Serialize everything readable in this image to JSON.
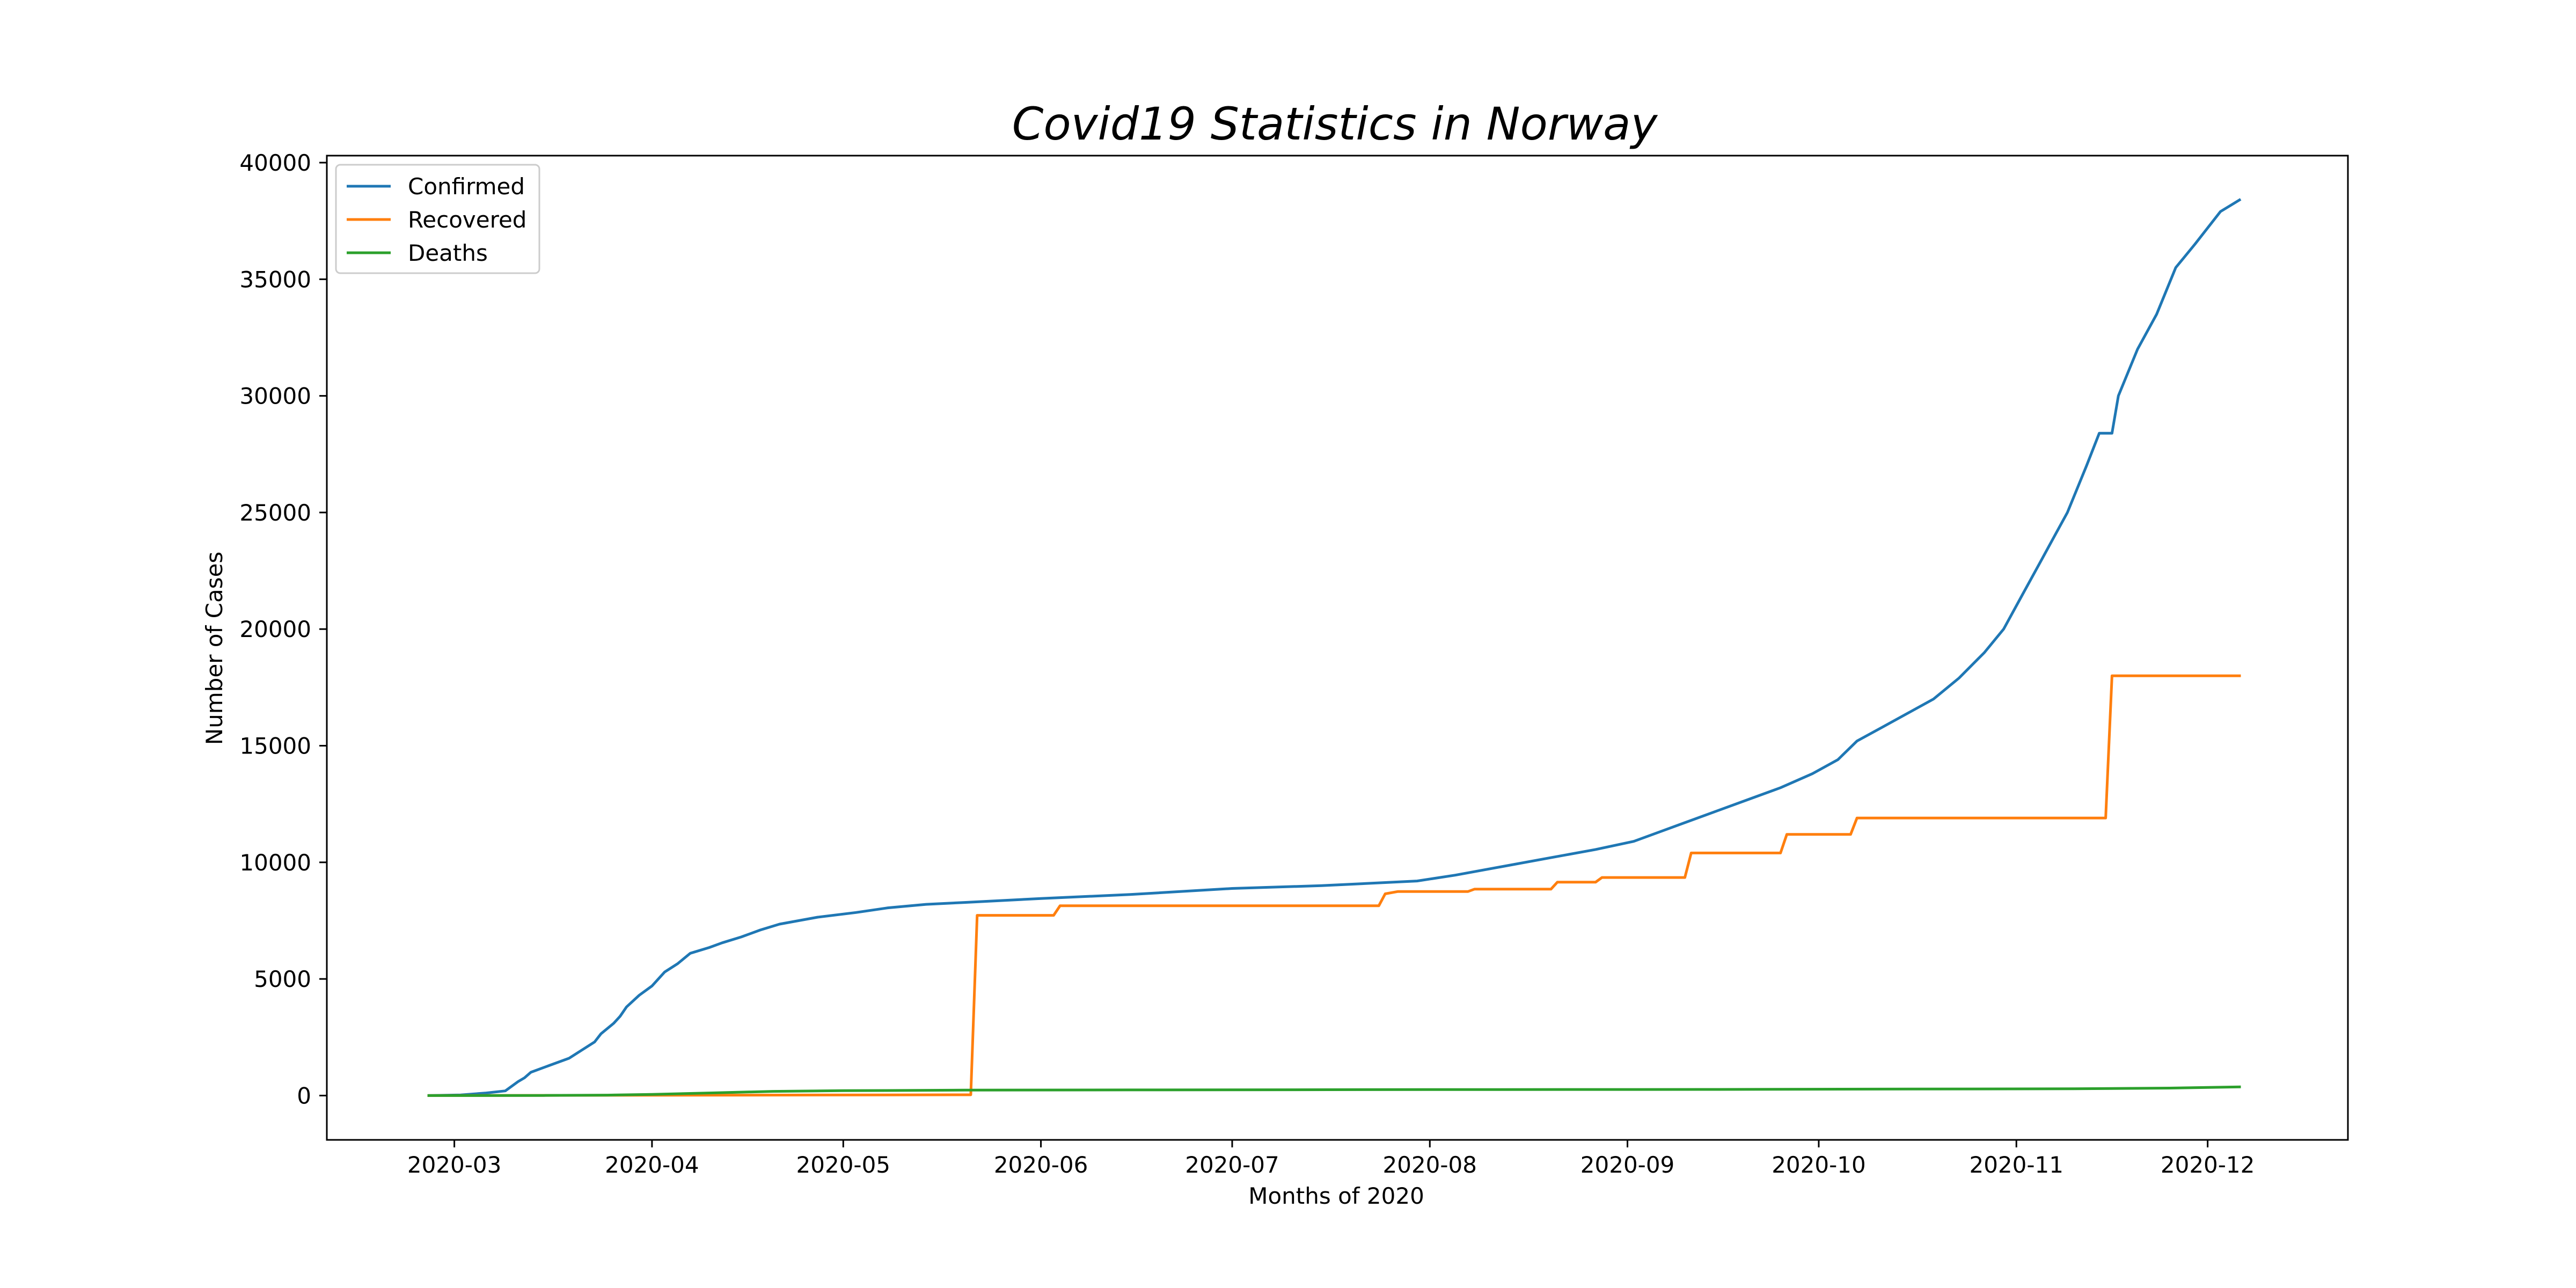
{
  "chart_data": {
    "type": "line",
    "title": "Covid19 Statistics in Norway",
    "xlabel": "Months of 2020",
    "ylabel": "Number of Cases",
    "xlim": [
      "2020-02-10",
      "2020-12-23"
    ],
    "ylim": [
      -1900,
      40300
    ],
    "x_ticks": [
      "2020-03-01",
      "2020-04-01",
      "2020-05-01",
      "2020-06-01",
      "2020-07-01",
      "2020-08-01",
      "2020-09-01",
      "2020-10-01",
      "2020-11-01",
      "2020-12-01"
    ],
    "x_tick_labels": [
      "2020-03",
      "2020-04",
      "2020-05",
      "2020-06",
      "2020-07",
      "2020-08",
      "2020-09",
      "2020-10",
      "2020-11",
      "2020-12"
    ],
    "y_ticks": [
      0,
      5000,
      10000,
      15000,
      20000,
      25000,
      30000,
      35000,
      40000
    ],
    "y_tick_labels": [
      "0",
      "5000",
      "10000",
      "15000",
      "20000",
      "25000",
      "30000",
      "35000",
      "40000"
    ],
    "grid": false,
    "legend": "top-left",
    "series": [
      {
        "name": "Confirmed",
        "color": "#1f77b4",
        "step": false,
        "points": [
          [
            "2020-02-26",
            1
          ],
          [
            "2020-03-02",
            25
          ],
          [
            "2020-03-06",
            110
          ],
          [
            "2020-03-09",
            200
          ],
          [
            "2020-03-11",
            600
          ],
          [
            "2020-03-12",
            760
          ],
          [
            "2020-03-13",
            1000
          ],
          [
            "2020-03-16",
            1300
          ],
          [
            "2020-03-19",
            1600
          ],
          [
            "2020-03-21",
            1950
          ],
          [
            "2020-03-23",
            2300
          ],
          [
            "2020-03-24",
            2650
          ],
          [
            "2020-03-26",
            3100
          ],
          [
            "2020-03-27",
            3400
          ],
          [
            "2020-03-28",
            3800
          ],
          [
            "2020-03-30",
            4300
          ],
          [
            "2020-04-01",
            4700
          ],
          [
            "2020-04-03",
            5300
          ],
          [
            "2020-04-05",
            5650
          ],
          [
            "2020-04-07",
            6100
          ],
          [
            "2020-04-10",
            6350
          ],
          [
            "2020-04-12",
            6550
          ],
          [
            "2020-04-15",
            6800
          ],
          [
            "2020-04-18",
            7100
          ],
          [
            "2020-04-21",
            7350
          ],
          [
            "2020-04-24",
            7500
          ],
          [
            "2020-04-27",
            7650
          ],
          [
            "2020-05-03",
            7850
          ],
          [
            "2020-05-08",
            8050
          ],
          [
            "2020-05-14",
            8200
          ],
          [
            "2020-05-20",
            8280
          ],
          [
            "2020-06-01",
            8450
          ],
          [
            "2020-06-15",
            8620
          ],
          [
            "2020-07-01",
            8880
          ],
          [
            "2020-07-15",
            9000
          ],
          [
            "2020-07-30",
            9200
          ],
          [
            "2020-08-05",
            9450
          ],
          [
            "2020-08-12",
            9800
          ],
          [
            "2020-08-20",
            10200
          ],
          [
            "2020-08-27",
            10550
          ],
          [
            "2020-09-02",
            10900
          ],
          [
            "2020-09-06",
            11300
          ],
          [
            "2020-09-10",
            11700
          ],
          [
            "2020-09-15",
            12200
          ],
          [
            "2020-09-20",
            12700
          ],
          [
            "2020-09-25",
            13200
          ],
          [
            "2020-09-30",
            13800
          ],
          [
            "2020-10-04",
            14400
          ],
          [
            "2020-10-07",
            15200
          ],
          [
            "2020-10-11",
            15800
          ],
          [
            "2020-10-15",
            16400
          ],
          [
            "2020-10-19",
            17000
          ],
          [
            "2020-10-23",
            17900
          ],
          [
            "2020-10-27",
            19000
          ],
          [
            "2020-10-30",
            20000
          ],
          [
            "2020-11-02",
            21500
          ],
          [
            "2020-11-05",
            23000
          ],
          [
            "2020-11-07",
            24000
          ],
          [
            "2020-11-09",
            25000
          ],
          [
            "2020-11-12",
            27000
          ],
          [
            "2020-11-14",
            28400
          ],
          [
            "2020-11-16",
            28400
          ],
          [
            "2020-11-17",
            30000
          ],
          [
            "2020-11-20",
            32000
          ],
          [
            "2020-11-23",
            33500
          ],
          [
            "2020-11-26",
            35500
          ],
          [
            "2020-11-29",
            36500
          ],
          [
            "2020-12-03",
            37900
          ],
          [
            "2020-12-06",
            38400
          ]
        ]
      },
      {
        "name": "Recovered",
        "color": "#ff7f0e",
        "step": true,
        "points": [
          [
            "2020-02-26",
            0
          ],
          [
            "2020-05-21",
            32
          ],
          [
            "2020-05-22",
            7727
          ],
          [
            "2020-06-03",
            7727
          ],
          [
            "2020-06-04",
            8138
          ],
          [
            "2020-07-24",
            8138
          ],
          [
            "2020-07-25",
            8650
          ],
          [
            "2020-07-27",
            8750
          ],
          [
            "2020-08-07",
            8750
          ],
          [
            "2020-08-08",
            8850
          ],
          [
            "2020-08-20",
            8850
          ],
          [
            "2020-08-21",
            9150
          ],
          [
            "2020-08-27",
            9150
          ],
          [
            "2020-08-28",
            9350
          ],
          [
            "2020-09-10",
            9350
          ],
          [
            "2020-09-11",
            10400
          ],
          [
            "2020-09-25",
            10400
          ],
          [
            "2020-09-26",
            11200
          ],
          [
            "2020-10-06",
            11200
          ],
          [
            "2020-10-07",
            11900
          ],
          [
            "2020-11-15",
            11900
          ],
          [
            "2020-11-16",
            18000
          ],
          [
            "2020-12-06",
            18000
          ]
        ]
      },
      {
        "name": "Deaths",
        "color": "#2ca02c",
        "step": false,
        "points": [
          [
            "2020-02-26",
            0
          ],
          [
            "2020-03-15",
            5
          ],
          [
            "2020-03-25",
            20
          ],
          [
            "2020-04-01",
            50
          ],
          [
            "2020-04-10",
            110
          ],
          [
            "2020-04-20",
            180
          ],
          [
            "2020-05-01",
            210
          ],
          [
            "2020-05-20",
            233
          ],
          [
            "2020-06-15",
            243
          ],
          [
            "2020-08-01",
            256
          ],
          [
            "2020-09-15",
            264
          ],
          [
            "2020-10-15",
            279
          ],
          [
            "2020-11-10",
            290
          ],
          [
            "2020-11-25",
            320
          ],
          [
            "2020-12-06",
            370
          ]
        ]
      }
    ]
  }
}
